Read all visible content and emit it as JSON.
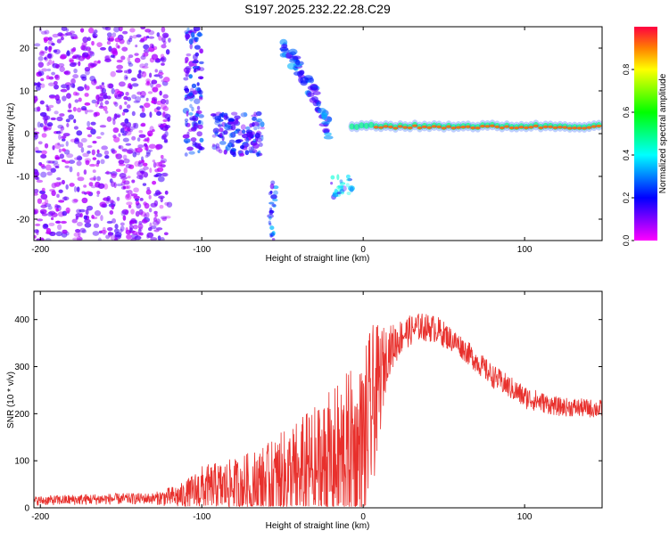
{
  "figure": {
    "title": "S197.2025.232.22.28.C29"
  },
  "chart_data": [
    {
      "type": "heatmap",
      "title": "S197.2025.232.22.28.C29",
      "xlabel": "Height of straight line (km)",
      "ylabel": "Frequency (Hz)",
      "xlim": [
        -204,
        148
      ],
      "ylim": [
        -25,
        25
      ],
      "x_ticks": [
        "-200",
        "-100",
        "0",
        "100"
      ],
      "y_ticks": [
        "20",
        "10",
        "0",
        "-10",
        "-20"
      ],
      "colorbar": {
        "label": "Normalized spectral amplitude",
        "range": [
          0,
          1
        ],
        "ticks": [
          "0.0",
          "0.2",
          "0.4",
          "0.6",
          "0.8"
        ]
      },
      "features": [
        {
          "name": "scattered noise",
          "x": [
            -204,
            -120
          ],
          "y": [
            -25,
            25
          ],
          "level": 0.1
        },
        {
          "name": "cluster",
          "x": [
            -110,
            -100
          ],
          "y": [
            -5,
            25
          ],
          "level": 0.2
        },
        {
          "name": "cluster",
          "x": [
            -93,
            -62
          ],
          "y": [
            -5,
            5
          ],
          "level": 0.2
        },
        {
          "name": "cluster",
          "x": [
            -58,
            -54
          ],
          "y": [
            -25,
            -10
          ],
          "level": 0.25
        },
        {
          "name": "descending streak",
          "x": [
            -50,
            -20
          ],
          "y": [
            0,
            20
          ],
          "level": 0.3
        },
        {
          "name": "cluster",
          "x": [
            -20,
            -7
          ],
          "y": [
            -15,
            -10
          ],
          "level": 0.3
        },
        {
          "name": "main tone",
          "x": [
            -7,
            148
          ],
          "y": [
            1,
            2.5
          ],
          "level": 0.9
        }
      ]
    },
    {
      "type": "line",
      "xlabel": "Height of straight line (km)",
      "ylabel": "SNR (10 * v/v)",
      "xlim": [
        -204,
        148
      ],
      "ylim": [
        0,
        460
      ],
      "x_ticks": [
        "-200",
        "-100",
        "0",
        "100"
      ],
      "y_ticks": [
        "0",
        "100",
        "200",
        "300",
        "400"
      ],
      "color": "#e8302c",
      "envelope": [
        {
          "x": -204,
          "center": 15,
          "amp": 10
        },
        {
          "x": -170,
          "center": 18,
          "amp": 12
        },
        {
          "x": -130,
          "center": 20,
          "amp": 12
        },
        {
          "x": -111,
          "center": 25,
          "amp": 30
        },
        {
          "x": -100,
          "center": 40,
          "amp": 50
        },
        {
          "x": -80,
          "center": 45,
          "amp": 60
        },
        {
          "x": -60,
          "center": 55,
          "amp": 80
        },
        {
          "x": -40,
          "center": 70,
          "amp": 120
        },
        {
          "x": -20,
          "center": 90,
          "amp": 160
        },
        {
          "x": -10,
          "center": 110,
          "amp": 180
        },
        {
          "x": -1,
          "center": 120,
          "amp": 190
        },
        {
          "x": 5,
          "center": 200,
          "amp": 190
        },
        {
          "x": 15,
          "center": 330,
          "amp": 55
        },
        {
          "x": 25,
          "center": 370,
          "amp": 35
        },
        {
          "x": 35,
          "center": 385,
          "amp": 30
        },
        {
          "x": 45,
          "center": 380,
          "amp": 30
        },
        {
          "x": 60,
          "center": 345,
          "amp": 25
        },
        {
          "x": 80,
          "center": 280,
          "amp": 25
        },
        {
          "x": 100,
          "center": 235,
          "amp": 25
        },
        {
          "x": 120,
          "center": 215,
          "amp": 20
        },
        {
          "x": 148,
          "center": 210,
          "amp": 20
        }
      ]
    }
  ]
}
